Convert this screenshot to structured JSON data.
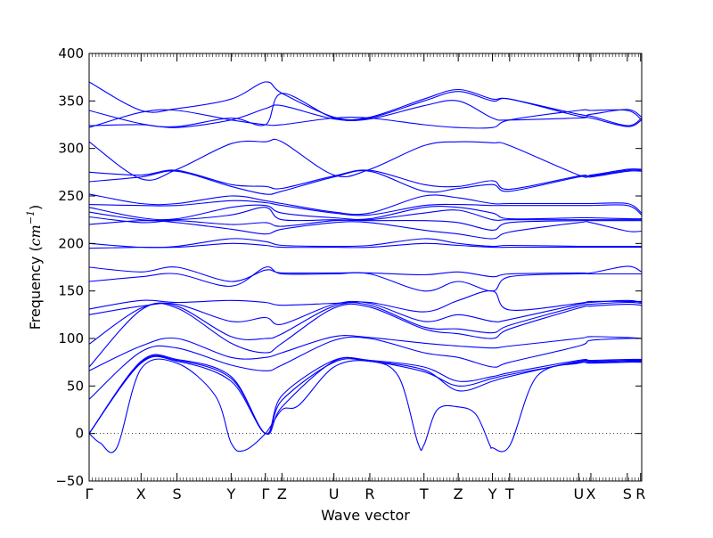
{
  "chart_data": {
    "type": "line",
    "title": "",
    "xlabel": "Wave vector",
    "ylabel": "Frequency (cm⁻¹)",
    "ylabel_prefix": "Frequency (",
    "ylabel_unit": "cm",
    "ylabel_exp": "−1",
    "ylabel_suffix": ")",
    "ylim": [
      -50,
      400
    ],
    "xlim": [
      0,
      100
    ],
    "yticks": [
      -50,
      0,
      50,
      100,
      150,
      200,
      250,
      300,
      350,
      400
    ],
    "zero_line": true,
    "grid": false,
    "line_color": "#0000ff",
    "kpoints": [
      {
        "label": "Γ",
        "x": 0.0
      },
      {
        "label": "X",
        "x": 9.4
      },
      {
        "label": "S",
        "x": 15.9
      },
      {
        "label": "Y",
        "x": 25.7
      },
      {
        "label": "Γ",
        "x": 31.9
      },
      {
        "label": "Z",
        "x": 34.9
      },
      {
        "label": "U",
        "x": 44.3
      },
      {
        "label": "R",
        "x": 50.8
      },
      {
        "label": "T",
        "x": 60.6
      },
      {
        "label": "Z",
        "x": 66.8
      },
      {
        "label": "Y",
        "x": 73.0
      },
      {
        "label": "T",
        "x": 76.1
      },
      {
        "label": "U",
        "x": 88.6
      },
      {
        "label": "X",
        "x": 90.8
      },
      {
        "label": "S",
        "x": 97.4
      },
      {
        "label": "R",
        "x": 99.8
      }
    ],
    "series": [
      {
        "x": [
          0,
          9.4,
          15.9,
          25.7,
          31.9,
          34.9,
          44.3,
          50.8,
          60.6,
          66.8,
          73.0,
          76.1,
          88.6,
          90.8,
          97.4,
          100
        ],
        "y": [
          0,
          74,
          76,
          55,
          0,
          35,
          75,
          76,
          65,
          50,
          58,
          62,
          75,
          75,
          76,
          76
        ]
      },
      {
        "x": [
          0,
          9.4,
          15.9,
          25.7,
          31.9,
          34.9,
          44.3,
          50.8,
          60.6,
          66.8,
          73.0,
          76.1,
          88.6,
          90.8,
          97.4,
          100
        ],
        "y": [
          0,
          75,
          77,
          58,
          0,
          28,
          76,
          76,
          67,
          45,
          55,
          60,
          76,
          76,
          77,
          77
        ]
      },
      {
        "x": [
          0,
          9.4,
          15.9,
          25.7,
          31.9,
          34.9,
          44.3,
          50.8,
          60.6,
          66.8,
          73.0,
          76.1,
          88.6,
          90.8,
          97.4,
          100
        ],
        "y": [
          0,
          76,
          78,
          60,
          0,
          40,
          77,
          77,
          70,
          55,
          60,
          64,
          77,
          77,
          78,
          78
        ]
      },
      {
        "x": [
          0,
          2,
          5,
          9.4,
          15.9,
          22.8,
          25.7,
          28.0,
          31.9,
          34.9,
          38,
          44.3,
          50.8,
          56,
          59.5,
          60.6,
          63,
          66.8,
          70,
          72.5,
          73.0,
          76.1,
          81,
          88.6,
          90.8,
          97.4,
          100
        ],
        "y": [
          0,
          -10,
          -15,
          68,
          74,
          40,
          -10,
          -18,
          0,
          25,
          30,
          70,
          76,
          60,
          -10,
          -12,
          25,
          28,
          20,
          -12,
          -15,
          -13,
          60,
          74,
          74,
          75,
          75
        ]
      },
      {
        "x": [
          0,
          9.4,
          15.9,
          25.7,
          31.9,
          34.9,
          44.3,
          50.8,
          60.6,
          66.8,
          73.0,
          76.1,
          88.6,
          90.8,
          97.4,
          100
        ],
        "y": [
          36,
          86,
          90,
          72,
          66,
          72,
          98,
          100,
          85,
          80,
          70,
          75,
          92,
          98,
          100,
          100
        ]
      },
      {
        "x": [
          0,
          9.4,
          15.9,
          25.7,
          31.9,
          34.9,
          44.3,
          50.8,
          60.6,
          66.8,
          73.0,
          76.1,
          88.6,
          90.8,
          97.4,
          100
        ],
        "y": [
          66,
          92,
          100,
          80,
          80,
          85,
          102,
          101,
          95,
          92,
          90,
          92,
          100,
          102,
          101,
          100
        ]
      },
      {
        "x": [
          0,
          9.4,
          15.9,
          25.7,
          31.9,
          34.9,
          44.3,
          50.8,
          60.6,
          66.8,
          73.0,
          76.1,
          88.6,
          90.8,
          97.4,
          100
        ],
        "y": [
          70,
          130,
          132,
          95,
          85,
          95,
          132,
          133,
          110,
          105,
          100,
          110,
          132,
          134,
          136,
          135
        ]
      },
      {
        "x": [
          0,
          9.4,
          15.9,
          25.7,
          31.9,
          34.9,
          44.3,
          50.8,
          60.6,
          66.8,
          73.0,
          76.1,
          88.6,
          90.8,
          97.4,
          100
        ],
        "y": [
          94,
          132,
          134,
          102,
          100,
          105,
          134,
          135,
          112,
          110,
          106,
          114,
          134,
          136,
          138,
          137
        ]
      },
      {
        "x": [
          0,
          9.4,
          15.9,
          25.7,
          31.9,
          34.9,
          44.3,
          50.8,
          60.6,
          66.8,
          73.0,
          76.1,
          88.6,
          90.8,
          97.4,
          100
        ],
        "y": [
          125,
          134,
          136,
          118,
          122,
          115,
          136,
          137,
          118,
          125,
          118,
          120,
          136,
          138,
          140,
          138
        ]
      },
      {
        "x": [
          0,
          9.4,
          15.9,
          25.7,
          31.9,
          34.9,
          44.3,
          50.8,
          60.6,
          66.8,
          73.0,
          76.1,
          88.6,
          90.8,
          97.4,
          100
        ],
        "y": [
          131,
          140,
          138,
          140,
          138,
          135,
          137,
          138,
          128,
          140,
          150,
          130,
          137,
          139,
          139,
          139
        ]
      },
      {
        "x": [
          0,
          9.4,
          15.9,
          25.7,
          31.9,
          34.9,
          44.3,
          50.8,
          60.6,
          66.8,
          73.0,
          76.1,
          88.6,
          90.8,
          97.4,
          100
        ],
        "y": [
          160,
          165,
          168,
          155,
          175,
          168,
          168,
          168,
          150,
          160,
          150,
          165,
          168,
          168,
          168,
          168
        ]
      },
      {
        "x": [
          0,
          9.4,
          15.9,
          25.7,
          31.9,
          34.9,
          44.3,
          50.8,
          60.6,
          66.8,
          73.0,
          76.1,
          88.6,
          90.8,
          97.4,
          100
        ],
        "y": [
          175,
          170,
          175,
          160,
          172,
          169,
          169,
          169,
          167,
          170,
          165,
          168,
          169,
          169,
          176,
          170
        ]
      },
      {
        "x": [
          0,
          9.4,
          15.9,
          25.7,
          31.9,
          34.9,
          44.3,
          50.8,
          60.6,
          66.8,
          73.0,
          76.1,
          88.6,
          90.8,
          97.4,
          100
        ],
        "y": [
          195,
          196,
          196,
          200,
          198,
          196,
          196,
          196,
          200,
          198,
          196,
          196,
          196,
          196,
          196,
          196
        ]
      },
      {
        "x": [
          0,
          9.4,
          15.9,
          25.7,
          31.9,
          34.9,
          44.3,
          50.8,
          60.6,
          66.8,
          73.0,
          76.1,
          88.6,
          90.8,
          97.4,
          100
        ],
        "y": [
          200,
          196,
          197,
          205,
          202,
          198,
          197,
          198,
          205,
          200,
          197,
          198,
          197,
          197,
          197,
          197
        ]
      },
      {
        "x": [
          0,
          9.4,
          15.9,
          25.7,
          31.9,
          34.9,
          44.3,
          50.8,
          60.6,
          66.8,
          73.0,
          76.1,
          88.6,
          90.8,
          97.4,
          100
        ],
        "y": [
          220,
          224,
          222,
          215,
          210,
          215,
          222,
          222,
          214,
          210,
          205,
          212,
          222,
          222,
          213,
          213
        ]
      },
      {
        "x": [
          0,
          9.4,
          15.9,
          25.7,
          31.9,
          34.9,
          44.3,
          50.8,
          60.6,
          66.8,
          73.0,
          76.1,
          88.6,
          90.8,
          97.4,
          100
        ],
        "y": [
          228,
          222,
          224,
          220,
          222,
          218,
          224,
          224,
          224,
          222,
          214,
          222,
          224,
          224,
          224,
          224
        ]
      },
      {
        "x": [
          0,
          9.4,
          15.9,
          25.7,
          31.9,
          34.9,
          44.3,
          50.8,
          60.6,
          66.8,
          73.0,
          76.1,
          88.6,
          90.8,
          97.4,
          100
        ],
        "y": [
          233,
          225,
          225,
          230,
          238,
          225,
          225,
          225,
          232,
          235,
          225,
          225,
          225,
          225,
          225,
          225
        ]
      },
      {
        "x": [
          0,
          9.4,
          15.9,
          25.7,
          31.9,
          34.9,
          44.3,
          50.8,
          60.6,
          66.8,
          73.0,
          76.1,
          88.6,
          90.8,
          97.4,
          100
        ],
        "y": [
          238,
          227,
          226,
          238,
          240,
          232,
          227,
          226,
          238,
          238,
          232,
          226,
          227,
          227,
          226,
          226
        ]
      },
      {
        "x": [
          0,
          9.4,
          15.9,
          25.7,
          31.9,
          34.9,
          44.3,
          50.8,
          60.6,
          66.8,
          73.0,
          76.1,
          88.6,
          90.8,
          97.4,
          100
        ],
        "y": [
          241,
          240,
          240,
          245,
          243,
          240,
          232,
          230,
          240,
          241,
          240,
          240,
          240,
          240,
          240,
          230
        ]
      },
      {
        "x": [
          0,
          9.4,
          15.9,
          25.7,
          31.9,
          34.9,
          44.3,
          50.8,
          60.6,
          66.8,
          73.0,
          76.1,
          88.6,
          90.8,
          97.4,
          100
        ],
        "y": [
          252,
          242,
          242,
          250,
          245,
          242,
          233,
          232,
          250,
          248,
          242,
          242,
          242,
          242,
          242,
          232
        ]
      },
      {
        "x": [
          0,
          9.4,
          15.9,
          25.7,
          31.9,
          34.9,
          44.3,
          50.8,
          60.6,
          66.8,
          73.0,
          76.1,
          88.6,
          90.8,
          97.4,
          100
        ],
        "y": [
          265,
          270,
          276,
          260,
          252,
          255,
          270,
          276,
          255,
          258,
          262,
          255,
          270,
          270,
          276,
          276
        ]
      },
      {
        "x": [
          0,
          9.4,
          15.9,
          25.7,
          31.9,
          34.9,
          44.3,
          50.8,
          60.6,
          66.8,
          73.0,
          76.1,
          88.6,
          90.8,
          97.4,
          100
        ],
        "y": [
          275,
          272,
          277,
          262,
          260,
          258,
          271,
          277,
          262,
          260,
          266,
          257,
          271,
          271,
          277,
          277
        ]
      },
      {
        "x": [
          0,
          9.4,
          15.9,
          25.7,
          31.9,
          34.9,
          44.3,
          50.8,
          60.6,
          66.8,
          73.0,
          76.1,
          88.6,
          90.8,
          97.4,
          100
        ],
        "y": [
          307,
          268,
          278,
          305,
          307,
          307,
          272,
          278,
          303,
          307,
          306,
          303,
          272,
          272,
          278,
          278
        ]
      },
      {
        "x": [
          0,
          9.4,
          15.9,
          25.7,
          31.9,
          34.9,
          44.3,
          50.8,
          60.6,
          66.8,
          73.0,
          76.1,
          88.6,
          90.8,
          97.4,
          100
        ],
        "y": [
          322,
          338,
          340,
          330,
          325,
          325,
          332,
          332,
          325,
          322,
          322,
          330,
          340,
          340,
          340,
          330
        ]
      },
      {
        "x": [
          0,
          9.4,
          15.9,
          25.7,
          31.9,
          34.9,
          44.3,
          50.8,
          60.6,
          66.8,
          73.0,
          76.1,
          88.6,
          90.8,
          97.4,
          100
        ],
        "y": [
          324,
          325,
          322,
          330,
          342,
          345,
          331,
          331,
          345,
          350,
          332,
          330,
          332,
          332,
          323,
          330
        ]
      },
      {
        "x": [
          0,
          9.4,
          15.9,
          25.7,
          31.9,
          34.9,
          44.3,
          50.8,
          60.6,
          66.8,
          73.0,
          76.1,
          88.6,
          90.8,
          97.4,
          100
        ],
        "y": [
          340,
          326,
          323,
          332,
          325,
          358,
          332,
          332,
          350,
          360,
          350,
          352,
          334,
          334,
          324,
          332
        ]
      },
      {
        "x": [
          0,
          9.4,
          15.9,
          25.7,
          31.9,
          34.9,
          44.3,
          50.8,
          60.6,
          66.8,
          73.0,
          76.1,
          88.6,
          90.8,
          97.4,
          100
        ],
        "y": [
          370,
          340,
          342,
          352,
          370,
          358,
          333,
          333,
          352,
          362,
          352,
          352,
          336,
          336,
          341,
          333
        ]
      }
    ]
  }
}
